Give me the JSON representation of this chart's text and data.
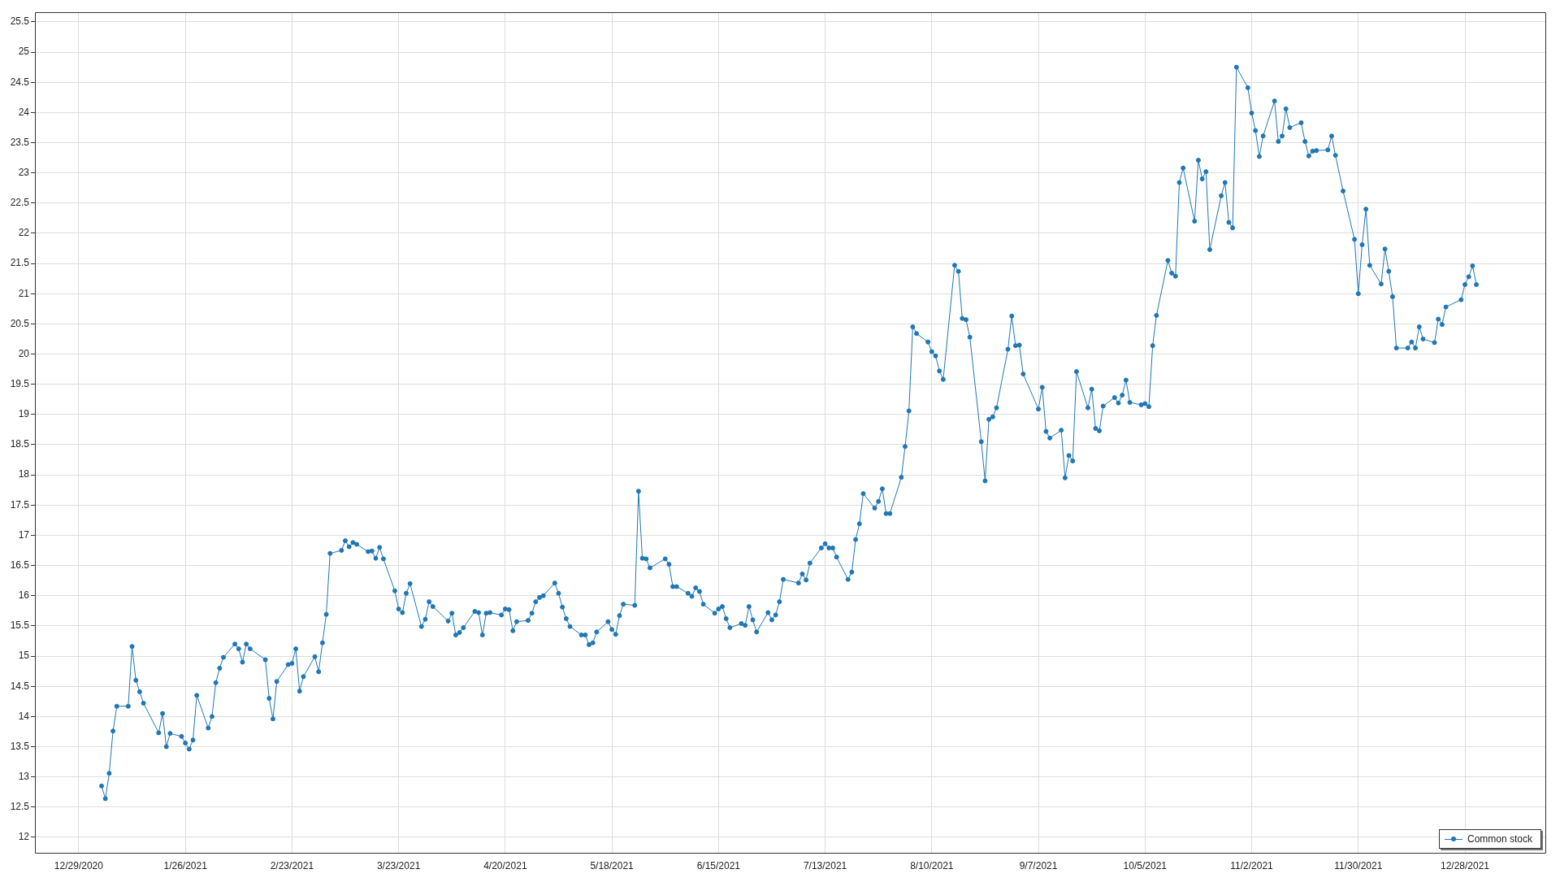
{
  "chart_data": {
    "type": "line",
    "x": [
      "2021-01-04",
      "2021-01-05",
      "2021-01-06",
      "2021-01-07",
      "2021-01-08",
      "2021-01-11",
      "2021-01-12",
      "2021-01-13",
      "2021-01-14",
      "2021-01-15",
      "2021-01-19",
      "2021-01-20",
      "2021-01-21",
      "2021-01-22",
      "2021-01-25",
      "2021-01-26",
      "2021-01-27",
      "2021-01-28",
      "2021-01-29",
      "2021-02-01",
      "2021-02-02",
      "2021-02-03",
      "2021-02-04",
      "2021-02-05",
      "2021-02-08",
      "2021-02-09",
      "2021-02-10",
      "2021-02-11",
      "2021-02-12",
      "2021-02-16",
      "2021-02-17",
      "2021-02-18",
      "2021-02-19",
      "2021-02-22",
      "2021-02-23",
      "2021-02-24",
      "2021-02-25",
      "2021-02-26",
      "2021-03-01",
      "2021-03-02",
      "2021-03-03",
      "2021-03-04",
      "2021-03-05",
      "2021-03-08",
      "2021-03-09",
      "2021-03-10",
      "2021-03-11",
      "2021-03-12",
      "2021-03-15",
      "2021-03-16",
      "2021-03-17",
      "2021-03-18",
      "2021-03-19",
      "2021-03-22",
      "2021-03-23",
      "2021-03-24",
      "2021-03-25",
      "2021-03-26",
      "2021-03-29",
      "2021-03-30",
      "2021-03-31",
      "2021-04-01",
      "2021-04-05",
      "2021-04-06",
      "2021-04-07",
      "2021-04-08",
      "2021-04-09",
      "2021-04-12",
      "2021-04-13",
      "2021-04-14",
      "2021-04-15",
      "2021-04-16",
      "2021-04-19",
      "2021-04-20",
      "2021-04-21",
      "2021-04-22",
      "2021-04-23",
      "2021-04-26",
      "2021-04-27",
      "2021-04-28",
      "2021-04-29",
      "2021-04-30",
      "2021-05-03",
      "2021-05-04",
      "2021-05-05",
      "2021-05-06",
      "2021-05-07",
      "2021-05-10",
      "2021-05-11",
      "2021-05-12",
      "2021-05-13",
      "2021-05-14",
      "2021-05-17",
      "2021-05-18",
      "2021-05-19",
      "2021-05-20",
      "2021-05-21",
      "2021-05-24",
      "2021-05-25",
      "2021-05-26",
      "2021-05-27",
      "2021-05-28",
      "2021-06-01",
      "2021-06-02",
      "2021-06-03",
      "2021-06-04",
      "2021-06-07",
      "2021-06-08",
      "2021-06-09",
      "2021-06-10",
      "2021-06-11",
      "2021-06-14",
      "2021-06-15",
      "2021-06-16",
      "2021-06-17",
      "2021-06-18",
      "2021-06-21",
      "2021-06-22",
      "2021-06-23",
      "2021-06-24",
      "2021-06-25",
      "2021-06-28",
      "2021-06-29",
      "2021-06-30",
      "2021-07-01",
      "2021-07-02",
      "2021-07-06",
      "2021-07-07",
      "2021-07-08",
      "2021-07-09",
      "2021-07-12",
      "2021-07-13",
      "2021-07-14",
      "2021-07-15",
      "2021-07-16",
      "2021-07-19",
      "2021-07-20",
      "2021-07-21",
      "2021-07-22",
      "2021-07-23",
      "2021-07-26",
      "2021-07-27",
      "2021-07-28",
      "2021-07-29",
      "2021-07-30",
      "2021-08-02",
      "2021-08-03",
      "2021-08-04",
      "2021-08-05",
      "2021-08-06",
      "2021-08-09",
      "2021-08-10",
      "2021-08-11",
      "2021-08-12",
      "2021-08-13",
      "2021-08-16",
      "2021-08-17",
      "2021-08-18",
      "2021-08-19",
      "2021-08-20",
      "2021-08-23",
      "2021-08-24",
      "2021-08-25",
      "2021-08-26",
      "2021-08-27",
      "2021-08-30",
      "2021-08-31",
      "2021-09-01",
      "2021-09-02",
      "2021-09-03",
      "2021-09-07",
      "2021-09-08",
      "2021-09-09",
      "2021-09-10",
      "2021-09-13",
      "2021-09-14",
      "2021-09-15",
      "2021-09-16",
      "2021-09-17",
      "2021-09-20",
      "2021-09-21",
      "2021-09-22",
      "2021-09-23",
      "2021-09-24",
      "2021-09-27",
      "2021-09-28",
      "2021-09-29",
      "2021-09-30",
      "2021-10-01",
      "2021-10-04",
      "2021-10-05",
      "2021-10-06",
      "2021-10-07",
      "2021-10-08",
      "2021-10-11",
      "2021-10-12",
      "2021-10-13",
      "2021-10-14",
      "2021-10-15",
      "2021-10-18",
      "2021-10-19",
      "2021-10-20",
      "2021-10-21",
      "2021-10-22",
      "2021-10-25",
      "2021-10-26",
      "2021-10-27",
      "2021-10-28",
      "2021-10-29",
      "2021-11-01",
      "2021-11-02",
      "2021-11-03",
      "2021-11-04",
      "2021-11-05",
      "2021-11-08",
      "2021-11-09",
      "2021-11-10",
      "2021-11-11",
      "2021-11-12",
      "2021-11-15",
      "2021-11-16",
      "2021-11-17",
      "2021-11-18",
      "2021-11-19",
      "2021-11-22",
      "2021-11-23",
      "2021-11-24",
      "2021-11-26",
      "2021-11-29",
      "2021-11-30",
      "2021-12-01",
      "2021-12-02",
      "2021-12-03",
      "2021-12-06",
      "2021-12-07",
      "2021-12-08",
      "2021-12-09",
      "2021-12-10",
      "2021-12-13",
      "2021-12-14",
      "2021-12-15",
      "2021-12-16",
      "2021-12-17",
      "2021-12-20",
      "2021-12-21",
      "2021-12-22",
      "2021-12-23",
      "2021-12-27",
      "2021-12-28",
      "2021-12-29",
      "2021-12-30",
      "2021-12-31"
    ],
    "series": [
      {
        "name": "Common stock",
        "color": "#1f77b4",
        "values": [
          12.85,
          12.64,
          13.06,
          13.76,
          14.17,
          14.17,
          15.16,
          14.6,
          14.41,
          14.22,
          13.73,
          14.05,
          13.5,
          13.72,
          13.67,
          13.56,
          13.46,
          13.61,
          14.35,
          13.81,
          14.0,
          14.56,
          14.8,
          14.98,
          15.2,
          15.12,
          14.9,
          15.2,
          15.12,
          14.94,
          14.3,
          13.96,
          14.58,
          14.86,
          14.88,
          15.12,
          14.42,
          14.66,
          14.99,
          14.74,
          15.22,
          15.69,
          16.7,
          16.75,
          16.91,
          16.81,
          16.88,
          16.85,
          16.73,
          16.74,
          16.62,
          16.8,
          16.61,
          16.08,
          15.78,
          15.72,
          16.04,
          16.2,
          15.49,
          15.61,
          15.9,
          15.82,
          15.58,
          15.71,
          15.35,
          15.39,
          15.47,
          15.74,
          15.72,
          15.35,
          15.71,
          15.72,
          15.68,
          15.78,
          15.77,
          15.42,
          15.57,
          15.59,
          15.71,
          15.9,
          15.97,
          16.0,
          16.21,
          16.04,
          15.81,
          15.62,
          15.49,
          15.35,
          15.35,
          15.19,
          15.22,
          15.4,
          15.57,
          15.44,
          15.36,
          15.67,
          15.86,
          15.84,
          17.73,
          16.62,
          16.61,
          16.46,
          16.61,
          16.52,
          16.15,
          16.15,
          16.04,
          15.99,
          16.13,
          16.07,
          15.86,
          15.71,
          15.78,
          15.82,
          15.62,
          15.47,
          15.54,
          15.51,
          15.82,
          15.6,
          15.4,
          15.72,
          15.6,
          15.68,
          15.9,
          16.27,
          16.21,
          16.36,
          16.26,
          16.54,
          16.79,
          16.86,
          16.79,
          16.79,
          16.64,
          16.27,
          16.39,
          16.93,
          17.19,
          17.69,
          17.45,
          17.56,
          17.77,
          17.36,
          17.36,
          17.96,
          18.47,
          19.06,
          20.45,
          20.34,
          20.2,
          20.04,
          19.97,
          19.72,
          19.58,
          21.47,
          21.37,
          20.59,
          20.57,
          20.28,
          18.55,
          17.9,
          18.92,
          18.96,
          19.11,
          20.08,
          20.63,
          20.14,
          20.15,
          19.67,
          19.09,
          19.45,
          18.72,
          18.61,
          18.74,
          17.95,
          18.32,
          18.23,
          19.71,
          19.11,
          19.42,
          18.77,
          18.73,
          19.14,
          19.28,
          19.19,
          19.32,
          19.57,
          19.2,
          19.16,
          19.18,
          19.13,
          20.14,
          20.64,
          21.55,
          21.34,
          21.29,
          22.84,
          23.08,
          22.2,
          23.21,
          22.9,
          23.02,
          21.73,
          22.62,
          22.84,
          22.18,
          22.09,
          24.75,
          24.41,
          23.99,
          23.7,
          23.27,
          23.61,
          24.19,
          23.52,
          23.61,
          24.06,
          23.75,
          23.83,
          23.52,
          23.28,
          23.36,
          23.37,
          23.38,
          23.61,
          23.29,
          22.7,
          21.9,
          21.0,
          21.81,
          22.4,
          21.47,
          21.16,
          21.74,
          21.37,
          20.95,
          20.1,
          20.1,
          20.2,
          20.1,
          20.45,
          20.25,
          20.19,
          20.58,
          20.49,
          20.78,
          20.9,
          21.15,
          21.28,
          21.46,
          21.15
        ]
      }
    ],
    "xlim": [
      "2020-12-17T12:00",
      "2022-01-18T08:00"
    ],
    "xticks": [
      {
        "value": "2020-12-29",
        "label": "12/29/2020"
      },
      {
        "value": "2021-01-26",
        "label": "1/26/2021"
      },
      {
        "value": "2021-02-23",
        "label": "2/23/2021"
      },
      {
        "value": "2021-03-23",
        "label": "3/23/2021"
      },
      {
        "value": "2021-04-20",
        "label": "4/20/2021"
      },
      {
        "value": "2021-05-18",
        "label": "5/18/2021"
      },
      {
        "value": "2021-06-15",
        "label": "6/15/2021"
      },
      {
        "value": "2021-07-13",
        "label": "7/13/2021"
      },
      {
        "value": "2021-08-10",
        "label": "8/10/2021"
      },
      {
        "value": "2021-09-07",
        "label": "9/7/2021"
      },
      {
        "value": "2021-10-05",
        "label": "10/5/2021"
      },
      {
        "value": "2021-11-02",
        "label": "11/2/2021"
      },
      {
        "value": "2021-11-30",
        "label": "11/30/2021"
      },
      {
        "value": "2021-12-28",
        "label": "12/28/2021"
      }
    ],
    "ylim": [
      11.73,
      25.66
    ],
    "yticks": [
      12,
      12.5,
      13,
      13.5,
      14,
      14.5,
      15,
      15.5,
      16,
      16.5,
      17,
      17.5,
      18,
      18.5,
      19,
      19.5,
      20,
      20.5,
      21,
      21.5,
      22,
      22.5,
      23,
      23.5,
      24,
      24.5,
      25,
      25.5
    ],
    "grid": true,
    "legend": "bottom right",
    "marker": "circle",
    "line_style": "solid"
  }
}
